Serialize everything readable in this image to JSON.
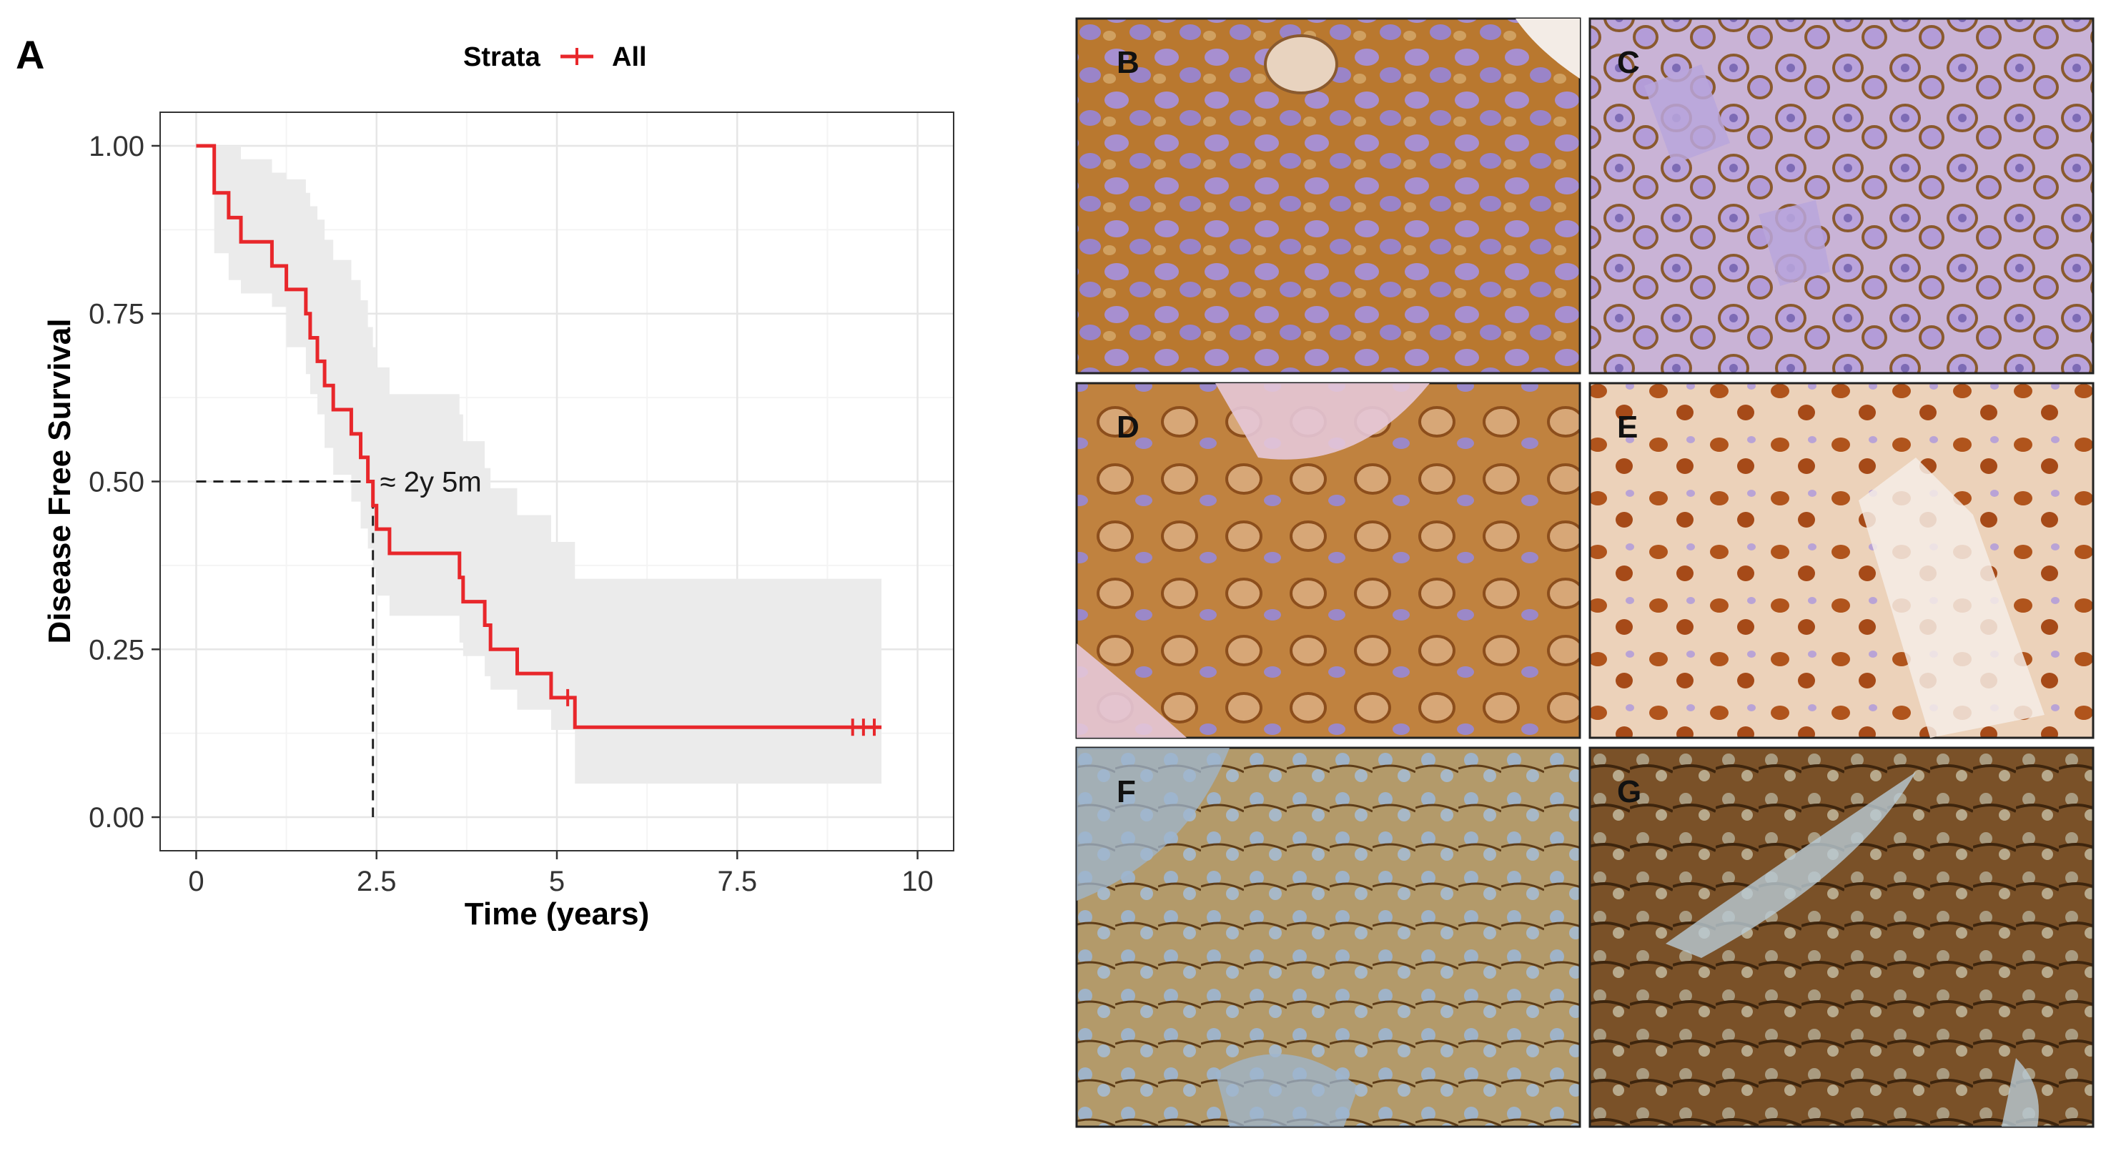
{
  "panel_a_label": "A",
  "chart_data": {
    "type": "line",
    "subtype": "kaplan-meier-step",
    "title": "",
    "xlabel": "Time (years)",
    "ylabel": "Disease Free Survival",
    "xlim": [
      -0.5,
      10.5
    ],
    "ylim": [
      -0.05,
      1.05
    ],
    "x_ticks": [
      0,
      2.5,
      5,
      7.5,
      10
    ],
    "x_tick_labels": [
      "0",
      "2.5",
      "5",
      "7.5",
      "10"
    ],
    "y_ticks": [
      0,
      0.25,
      0.5,
      0.75,
      1
    ],
    "y_tick_labels": [
      "0.00",
      "0.25",
      "0.50",
      "0.75",
      "1.00"
    ],
    "grid": true,
    "legend_placement": "top-center",
    "legend": {
      "title": "Strata",
      "entries": [
        "All"
      ]
    },
    "series": [
      {
        "name": "All",
        "color": "#e8272b",
        "steps": [
          [
            0,
            1.0
          ],
          [
            0.25,
            0.93
          ],
          [
            0.45,
            0.893
          ],
          [
            0.62,
            0.857
          ],
          [
            1.05,
            0.821
          ],
          [
            1.25,
            0.786
          ],
          [
            1.52,
            0.75
          ],
          [
            1.58,
            0.714
          ],
          [
            1.68,
            0.679
          ],
          [
            1.78,
            0.643
          ],
          [
            1.9,
            0.607
          ],
          [
            2.15,
            0.571
          ],
          [
            2.28,
            0.536
          ],
          [
            2.38,
            0.5
          ],
          [
            2.45,
            0.464
          ],
          [
            2.5,
            0.429
          ],
          [
            2.68,
            0.393
          ],
          [
            3.65,
            0.357
          ],
          [
            3.7,
            0.321
          ],
          [
            4.0,
            0.286
          ],
          [
            4.08,
            0.25
          ],
          [
            4.45,
            0.214
          ],
          [
            4.92,
            0.178
          ],
          [
            5.25,
            0.134
          ]
        ],
        "end_x": 9.5,
        "censor_x": [
          5.15,
          9.1,
          9.25,
          9.4
        ],
        "ci_color": "#ebebeb",
        "ci_steps": [
          [
            0,
            1.0,
            1.0
          ],
          [
            0.25,
            0.84,
            1.0
          ],
          [
            0.45,
            0.8,
            1.0
          ],
          [
            0.62,
            0.78,
            0.98
          ],
          [
            1.05,
            0.76,
            0.96
          ],
          [
            1.25,
            0.7,
            0.95
          ],
          [
            1.52,
            0.66,
            0.93
          ],
          [
            1.58,
            0.63,
            0.91
          ],
          [
            1.68,
            0.6,
            0.89
          ],
          [
            1.78,
            0.55,
            0.86
          ],
          [
            1.9,
            0.51,
            0.83
          ],
          [
            2.15,
            0.47,
            0.8
          ],
          [
            2.28,
            0.43,
            0.77
          ],
          [
            2.38,
            0.4,
            0.73
          ],
          [
            2.45,
            0.37,
            0.7
          ],
          [
            2.5,
            0.33,
            0.67
          ],
          [
            2.68,
            0.3,
            0.63
          ],
          [
            3.65,
            0.26,
            0.6
          ],
          [
            3.7,
            0.24,
            0.56
          ],
          [
            4.0,
            0.21,
            0.52
          ],
          [
            4.08,
            0.19,
            0.49
          ],
          [
            4.45,
            0.16,
            0.45
          ],
          [
            4.92,
            0.13,
            0.41
          ],
          [
            5.25,
            0.05,
            0.355
          ]
        ],
        "ci_end_x": 9.5
      }
    ],
    "median": {
      "x": 2.45,
      "y": 0.5,
      "label": "≈ 2y 5m"
    }
  },
  "image_panels": [
    {
      "label": "B",
      "stain": "#b9782f"
    },
    {
      "label": "C",
      "stain": "#a87a5c"
    },
    {
      "label": "D",
      "stain": "#c0823f"
    },
    {
      "label": "E",
      "stain": "#e7cbb0"
    },
    {
      "label": "F",
      "stain": "#9c7a4b"
    },
    {
      "label": "G",
      "stain": "#6e4a26"
    }
  ]
}
